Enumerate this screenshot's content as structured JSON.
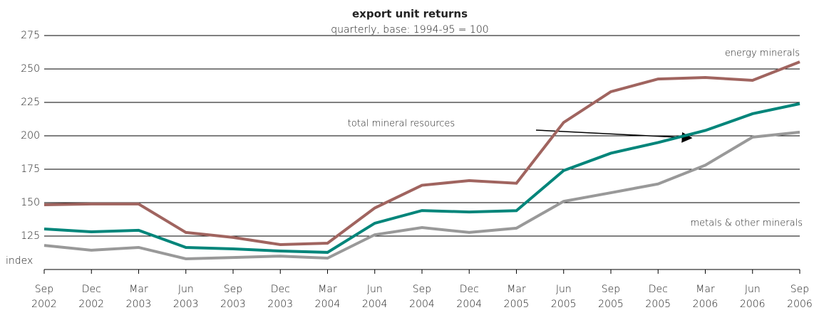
{
  "chart_data": {
    "type": "line",
    "title": "export unit returns",
    "subtitle": "quarterly, base: 1994-95 = 100",
    "y_label": "index",
    "categories": [
      "Sep 2002",
      "Dec 2002",
      "Mar 2003",
      "Jun 2003",
      "Sep 2003",
      "Dec 2003",
      "Mar 2004",
      "Jun 2004",
      "Sep 2004",
      "Dec 2004",
      "Mar 2005",
      "Jun 2005",
      "Sep 2005",
      "Dec 2005",
      "Mar 2006",
      "Jun 2006",
      "Sep 2006"
    ],
    "series": [
      {
        "name": "energy minerals",
        "color": "#a0645f",
        "values": [
          148.4,
          149,
          149,
          127.7,
          124,
          118.6,
          119.7,
          146,
          163,
          166.5,
          164.5,
          210,
          233,
          242.5,
          243.6,
          241.5,
          255.3
        ]
      },
      {
        "name": "total mineral resources",
        "color": "#00857a",
        "values": [
          130.3,
          128.2,
          129.3,
          116.5,
          115.4,
          113.8,
          112.8,
          134.6,
          144.1,
          143,
          144,
          174,
          187,
          195,
          204,
          216.5,
          224
        ]
      },
      {
        "name": "metals & other minerals",
        "color": "#999999",
        "values": [
          118,
          114.4,
          116.5,
          108,
          109,
          110,
          108.5,
          126,
          131.4,
          127.7,
          130.9,
          151,
          157.4,
          164,
          178,
          199,
          202.7
        ]
      }
    ],
    "ylim": [
      100,
      275
    ],
    "yticks": [
      125,
      150,
      175,
      200,
      225,
      250,
      275
    ],
    "grid": true
  }
}
